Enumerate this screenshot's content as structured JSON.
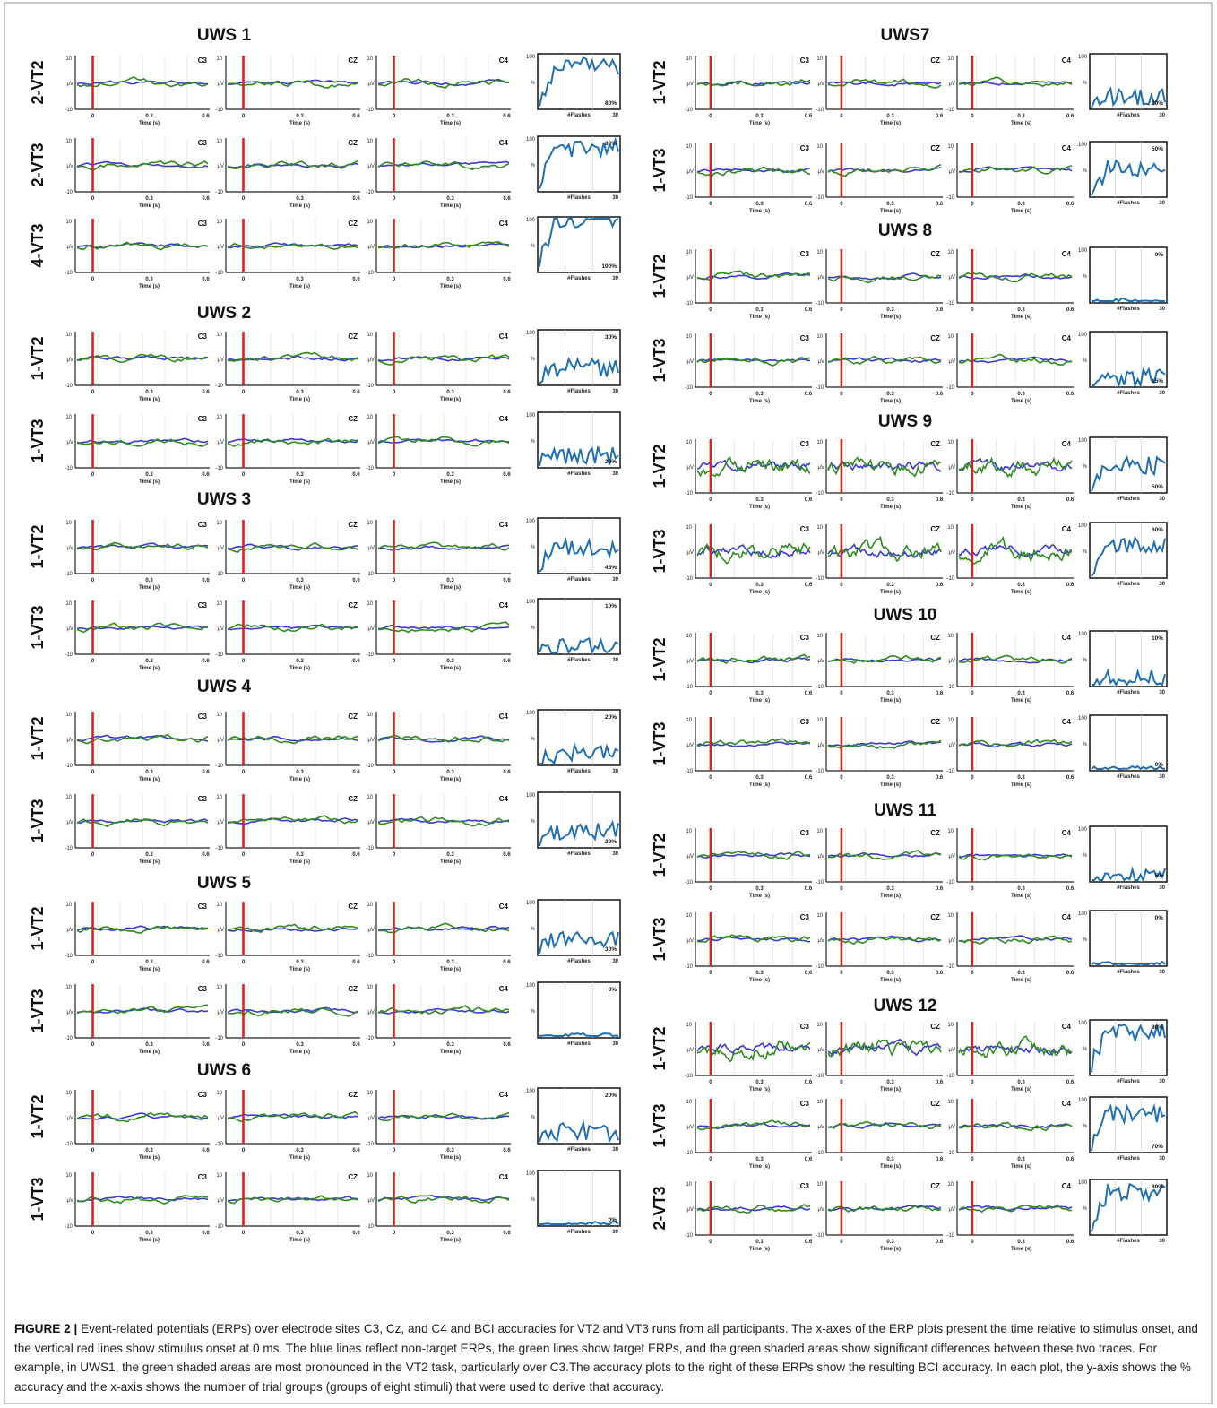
{
  "figure_label": "FIGURE 2 |",
  "caption": "Event-related potentials (ERPs) over electrode sites C3, Cz, and C4 and BCI accuracies for VT2 and VT3 runs from all participants. The x-axes of the ERP plots present the time relative to stimulus onset, and the vertical red lines show stimulus onset at 0 ms. The blue lines reflect non-target ERPs, the green lines show target ERPs, and the green shaded areas show significant differences between these two traces. For example, in UWS1, the green shaded areas are most pronounced in the VT2 task, particularly over C3.The accuracy plots to the right of these ERPs show the resulting BCI accuracy. In each plot, the y-axis shows the % accuracy and the x-axis shows the number of trial groups (groups of eight stimuli) that were used to derive that accuracy.",
  "colors": {
    "target": "#2e8b1e",
    "nontarget": "#3a3ad6",
    "onset": "#e02020",
    "shade": "#b8e0a0",
    "accuracy": "#1f6fb5"
  },
  "erp_axes": {
    "y_top": "10",
    "y_mid": "μV",
    "y_bottom": "-10",
    "x_ticks": [
      "0",
      "0.3",
      "0.6"
    ],
    "x_label": "Time (s)"
  },
  "acc_axes": {
    "y_top": "100",
    "y_mid": "%",
    "x_label": "#Flashes",
    "x_end": "30"
  },
  "electrodes": [
    "C3",
    "CZ",
    "C4"
  ],
  "chart_data": {
    "type": "line",
    "panels": [
      {
        "participant": "UWS 1",
        "rows": [
          {
            "run": "2-VT2",
            "accuracy": "80%"
          },
          {
            "run": "2-VT3",
            "accuracy": "80%"
          },
          {
            "run": "4-VT3",
            "accuracy": "100%"
          }
        ]
      },
      {
        "participant": "UWS 2",
        "rows": [
          {
            "run": "1-VT2",
            "accuracy": "30%"
          },
          {
            "run": "1-VT3",
            "accuracy": "20%"
          }
        ]
      },
      {
        "participant": "UWS 3",
        "rows": [
          {
            "run": "1-VT2",
            "accuracy": "45%"
          },
          {
            "run": "1-VT3",
            "accuracy": "10%"
          }
        ]
      },
      {
        "participant": "UWS 4",
        "rows": [
          {
            "run": "1-VT2",
            "accuracy": "20%"
          },
          {
            "run": "1-VT3",
            "accuracy": "30%"
          }
        ]
      },
      {
        "participant": "UWS 5",
        "rows": [
          {
            "run": "1-VT2",
            "accuracy": "30%"
          },
          {
            "run": "1-VT3",
            "accuracy": "0%"
          }
        ]
      },
      {
        "participant": "UWS 6",
        "rows": [
          {
            "run": "1-VT2",
            "accuracy": "20%"
          },
          {
            "run": "1-VT3",
            "accuracy": "0%"
          }
        ]
      },
      {
        "participant": "UWS7",
        "rows": [
          {
            "run": "1-VT2",
            "accuracy": "20%"
          },
          {
            "run": "1-VT3",
            "accuracy": "50%"
          }
        ]
      },
      {
        "participant": "UWS 8",
        "rows": [
          {
            "run": "1-VT2",
            "accuracy": "0%"
          },
          {
            "run": "1-VT3",
            "accuracy": "15%"
          }
        ]
      },
      {
        "participant": "UWS 9",
        "rows": [
          {
            "run": "1-VT2",
            "accuracy": "50%"
          },
          {
            "run": "1-VT3",
            "accuracy": "60%"
          }
        ]
      },
      {
        "participant": "UWS 10",
        "rows": [
          {
            "run": "1-VT2",
            "accuracy": "10%"
          },
          {
            "run": "1-VT3",
            "accuracy": "0%"
          }
        ]
      },
      {
        "participant": "UWS 11",
        "rows": [
          {
            "run": "1-VT2",
            "accuracy": "5%"
          },
          {
            "run": "1-VT3",
            "accuracy": "0%"
          }
        ]
      },
      {
        "participant": "UWS 12",
        "rows": [
          {
            "run": "1-VT2",
            "accuracy": "80%"
          },
          {
            "run": "1-VT3",
            "accuracy": "70%"
          },
          {
            "run": "2-VT3",
            "accuracy": "80%"
          }
        ]
      }
    ]
  }
}
